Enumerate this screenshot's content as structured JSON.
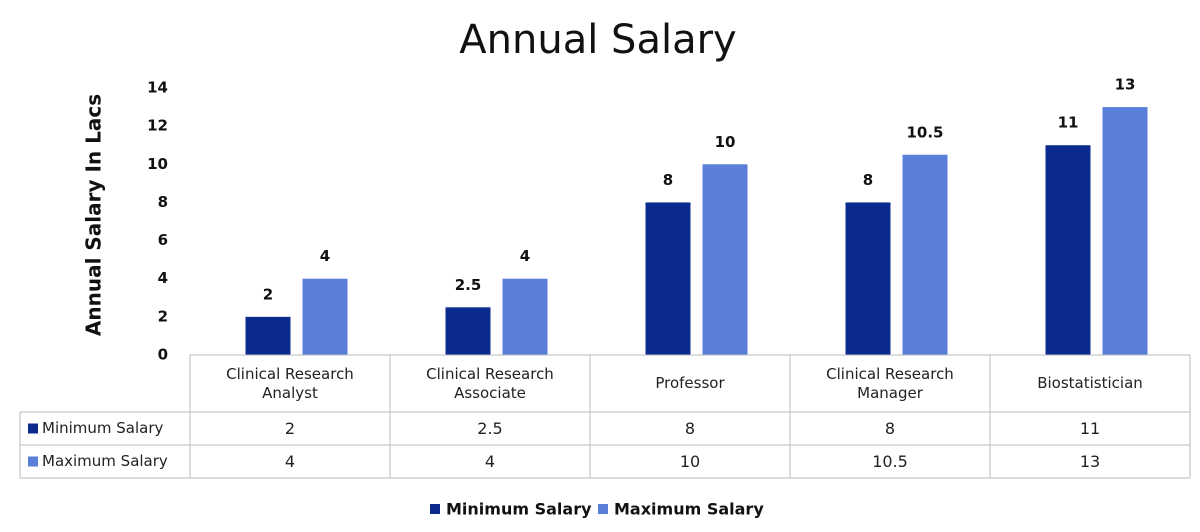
{
  "chart_data": {
    "type": "bar",
    "title": "Annual Salary",
    "ylabel": "Annual Salary In Lacs",
    "categories": [
      "Clinical Research Analyst",
      "Clinical Research Associate",
      "Professor",
      "Clinical Research Manager",
      "Biostatistician"
    ],
    "series": [
      {
        "name": "Minimum Salary",
        "color": "#0b2a8e",
        "values": [
          2,
          2.5,
          8,
          8,
          11
        ]
      },
      {
        "name": "Maximum Salary",
        "color": "#5a7fd8",
        "values": [
          4,
          4,
          10,
          10.5,
          13
        ]
      }
    ],
    "ylim": [
      0,
      14
    ],
    "yticks": [
      0,
      2,
      4,
      6,
      8,
      10,
      12,
      14
    ],
    "grid": false,
    "legend": "bottom"
  }
}
